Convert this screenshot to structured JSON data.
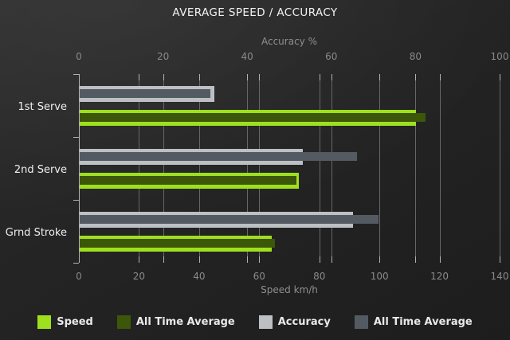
{
  "chart_data": {
    "type": "bar",
    "orientation": "horizontal",
    "title": "AVERAGE SPEED / ACCURACY",
    "categories": [
      "1st Serve",
      "2nd Serve",
      "Grnd Stroke"
    ],
    "axes": {
      "top": {
        "label": "Accuracy %",
        "min": 0,
        "max": 100,
        "ticks": [
          0,
          20,
          40,
          60,
          80,
          100
        ]
      },
      "bottom": {
        "label": "Speed km/h",
        "min": 0,
        "max": 140,
        "ticks": [
          0,
          20,
          40,
          60,
          80,
          100,
          120,
          140
        ]
      }
    },
    "series": [
      {
        "name": "Speed",
        "axis": "bottom",
        "color": "#9fe01e",
        "values": [
          112,
          73,
          64
        ]
      },
      {
        "name": "All Time Average",
        "axis": "bottom",
        "color": "#3c560a",
        "values": [
          115,
          72,
          65
        ]
      },
      {
        "name": "Accuracy",
        "axis": "top",
        "color": "#bcc0c3",
        "values": [
          32,
          53,
          65
        ]
      },
      {
        "name": "All Time Average",
        "axis": "top",
        "color": "#545a62",
        "values": [
          31,
          66,
          71
        ]
      }
    ],
    "grid": true,
    "legend_position": "bottom",
    "background_color": "#232323",
    "text_color": "#f2f2f2",
    "muted_text_color": "#8f8f8f"
  }
}
